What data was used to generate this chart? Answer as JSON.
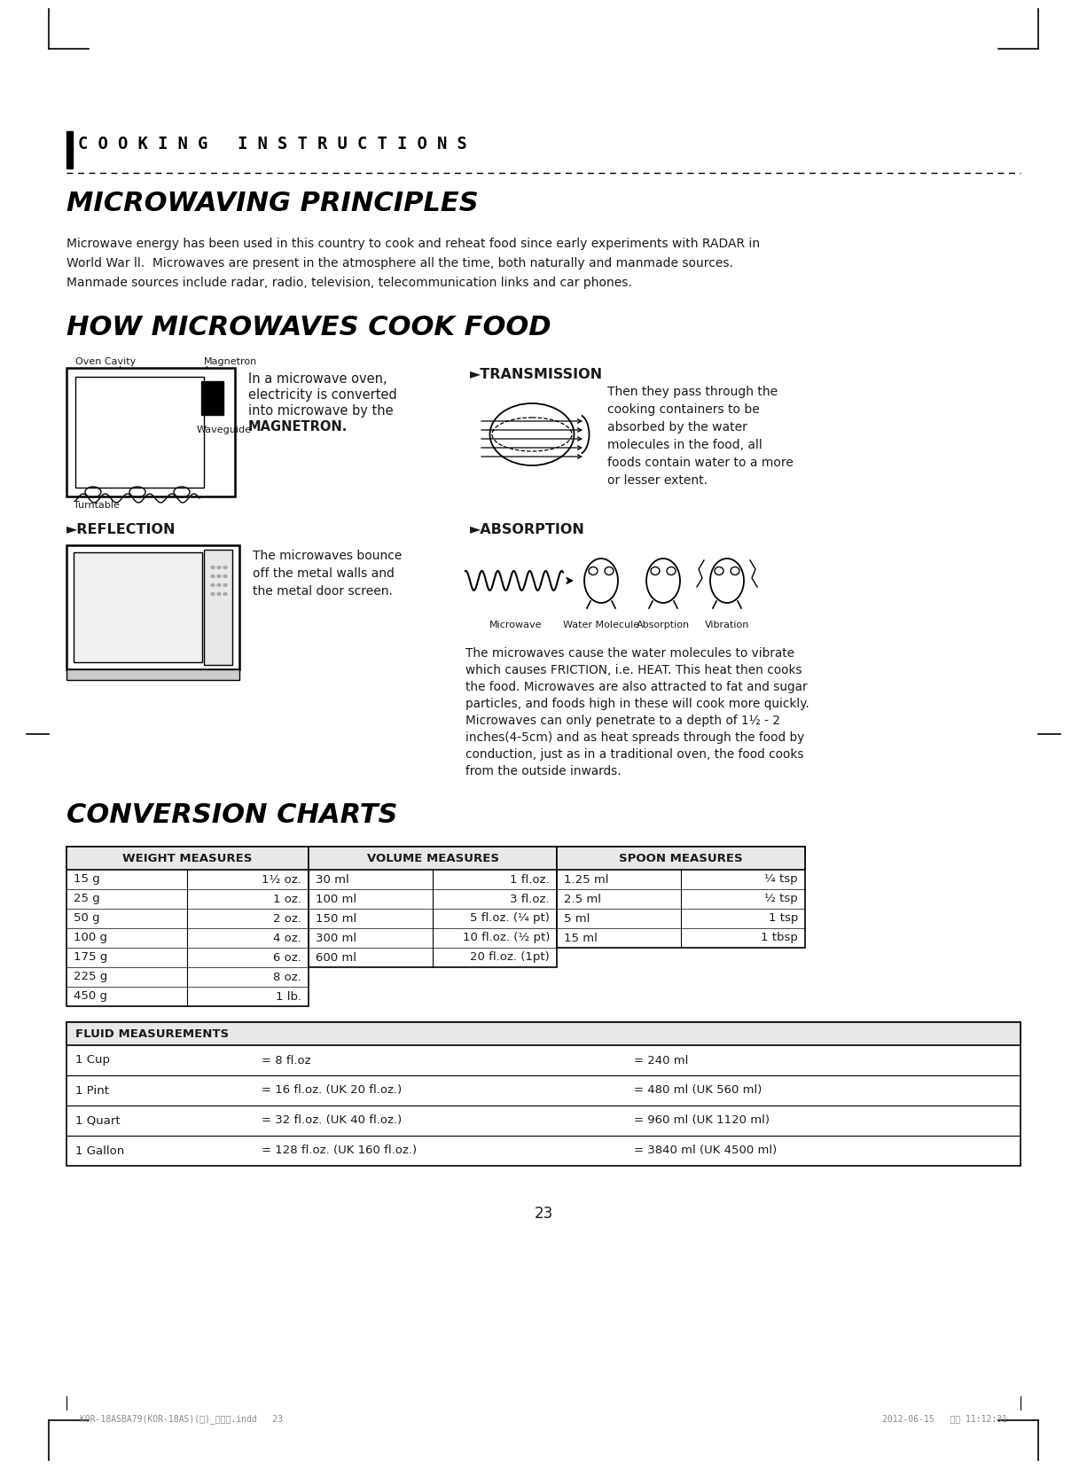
{
  "page_num": "23",
  "footer_left": "KOR-18ASBA79(KOR-18AS)(영)_규격용.indd   23",
  "footer_right": "2012-06-15   오전 11:12:31",
  "section_header": "C O O K I N G   I N S T R U C T I O N S",
  "title1": "MICROWAVING PRINCIPLES",
  "para1_l1": "Microwave energy has been used in this country to cook and reheat food since early experiments with RADAR in",
  "para1_l2": "World War ll.  Microwaves are present in the atmosphere all the time, both naturally and manmade sources.",
  "para1_l3": "Manmade sources include radar, radio, television, telecommunication links and car phones.",
  "title2": "HOW MICROWAVES COOK FOOD",
  "magnetron_label": "Magnetron",
  "oven_cavity_label": "Oven Cavity",
  "turntable_label": "Turntable",
  "waveguide_label": "Waveguide",
  "magnetron_text_l1": "In a microwave oven,",
  "magnetron_text_l2": "electricity is converted",
  "magnetron_text_l3": "into microwave by the",
  "magnetron_text_l4": "MAGNETRON.",
  "transmission_header": "►TRANSMISSION",
  "transmission_text_l1": "Then they pass through the",
  "transmission_text_l2": "cooking containers to be",
  "transmission_text_l3": "absorbed by the water",
  "transmission_text_l4": "molecules in the food, all",
  "transmission_text_l5": "foods contain water to a more",
  "transmission_text_l6": "or lesser extent.",
  "reflection_header": "►REFLECTION",
  "reflection_text_l1": "The microwaves bounce",
  "reflection_text_l2": "off the metal walls and",
  "reflection_text_l3": "the metal door screen.",
  "absorption_header": "►ABSORPTION",
  "absorption_text_l1": "The microwaves cause the water molecules to vibrate",
  "absorption_text_l2": "which causes FRICTION, i.e. HEAT. This heat then cooks",
  "absorption_text_l3": "the food. Microwaves are also attracted to fat and sugar",
  "absorption_text_l4": "particles, and foods high in these will cook more quickly.",
  "absorption_text_l5": "Microwaves can only penetrate to a depth of 1½ - 2",
  "absorption_text_l6": "inches(4-5cm) and as heat spreads through the food by",
  "absorption_text_l7": "conduction, just as in a traditional oven, the food cooks",
  "absorption_text_l8": "from the outside inwards.",
  "absorption_labels": [
    "Microwave",
    "Water Molecule",
    "Absorption",
    "Vibration"
  ],
  "title3": "CONVERSION CHARTS",
  "weight_header": "WEIGHT MEASURES",
  "weight_data": [
    [
      "15 g",
      "1½ oz."
    ],
    [
      "25 g",
      "1 oz."
    ],
    [
      "50 g",
      "2 oz."
    ],
    [
      "100 g",
      "4 oz."
    ],
    [
      "175 g",
      "6 oz."
    ],
    [
      "225 g",
      "8 oz."
    ],
    [
      "450 g",
      "1 lb."
    ]
  ],
  "volume_header": "VOLUME MEASURES",
  "volume_data": [
    [
      "30 ml",
      "1 fl.oz."
    ],
    [
      "100 ml",
      "3 fl.oz."
    ],
    [
      "150 ml",
      "5 fl.oz. (¼ pt)"
    ],
    [
      "300 ml",
      "10 fl.oz. (½ pt)"
    ],
    [
      "600 ml",
      "20 fl.oz. (1pt)"
    ]
  ],
  "spoon_header": "SPOON MEASURES",
  "spoon_data": [
    [
      "1.25 ml",
      "¼ tsp"
    ],
    [
      "2.5 ml",
      "½ tsp"
    ],
    [
      "5 ml",
      "1 tsp"
    ],
    [
      "15 ml",
      "1 tbsp"
    ]
  ],
  "fluid_header": "FLUID MEASUREMENTS",
  "fluid_data": [
    [
      "1 Cup",
      "= 8 fl.oz",
      "= 240 ml"
    ],
    [
      "1 Pint",
      "= 16 fl.oz. (UK 20 fl.oz.)",
      "= 480 ml (UK 560 ml)"
    ],
    [
      "1 Quart",
      "= 32 fl.oz. (UK 40 fl.oz.)",
      "= 960 ml (UK 1120 ml)"
    ],
    [
      "1 Gallon",
      "= 128 fl.oz. (UK 160 fl.oz.)",
      "= 3840 ml (UK 4500 ml)"
    ]
  ],
  "bg_color": "#ffffff",
  "text_color": "#1a1a1a"
}
